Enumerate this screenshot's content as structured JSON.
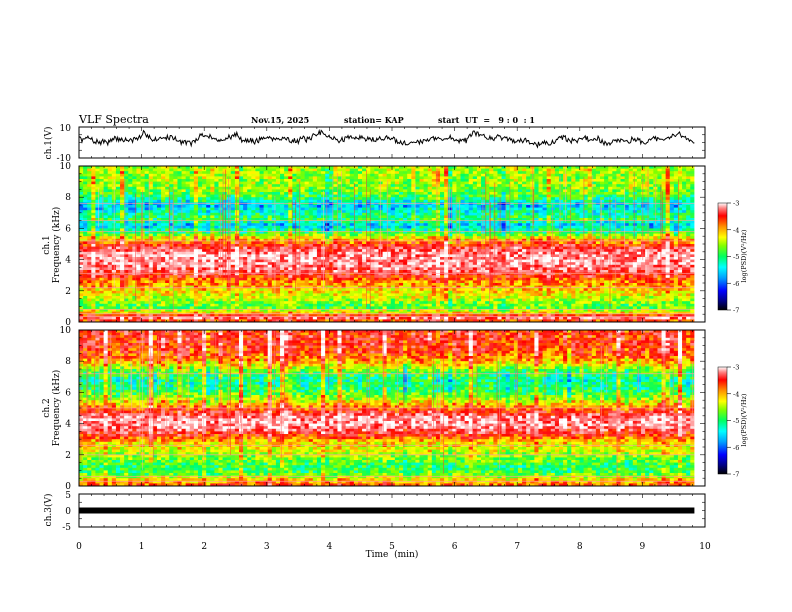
{
  "header": {
    "title": "VLF Spectra",
    "date": "Nov.15, 2025",
    "station": "station= KAP",
    "start_time": "start  UT  =   9 : 0  : 1"
  },
  "colors": {
    "waveform": "#000000",
    "colormap": [
      "#000080",
      "#0000ff",
      "#00a0ff",
      "#00ffff",
      "#00ff60",
      "#80ff00",
      "#ffff00",
      "#ff9000",
      "#ff0000",
      "#ff8080",
      "#ffffff"
    ]
  },
  "chart_data": [
    {
      "type": "line",
      "panel": "ch1-waveform",
      "ylabel": "ch.1(V)",
      "ylim": [
        -10,
        10
      ],
      "yticks": [
        "10",
        "-10"
      ],
      "xlim": [
        0,
        10
      ],
      "duration_min": 9.83,
      "baseline_v": 2.5,
      "amplitude_v": 3
    },
    {
      "type": "heatmap",
      "panel": "ch1-spectrogram",
      "ylabel": "ch.1 Frequency (kHz)",
      "ylim": [
        0,
        10
      ],
      "yticks": [
        "0",
        "2",
        "4",
        "6",
        "8",
        "10"
      ],
      "xlim": [
        0,
        10
      ],
      "duration_min": 9.83,
      "colorbar": {
        "label": "log(PSD)(V²/Hz)",
        "range": [
          -7,
          -3
        ],
        "ticks": [
          "-3",
          "-4",
          "-5",
          "-6",
          "-7"
        ]
      },
      "profile_khz": [
        [
          0,
          -4.2
        ],
        [
          0.3,
          -3.3
        ],
        [
          0.6,
          -4.6
        ],
        [
          1.0,
          -5.2
        ],
        [
          1.5,
          -4.8
        ],
        [
          2.0,
          -4.5
        ],
        [
          2.7,
          -4.1
        ],
        [
          3.2,
          -3.5
        ],
        [
          3.8,
          -3.3
        ],
        [
          4.3,
          -3.3
        ],
        [
          4.8,
          -3.6
        ],
        [
          5.3,
          -4.4
        ],
        [
          5.8,
          -5.4
        ],
        [
          6.2,
          -6.0
        ],
        [
          6.6,
          -5.3
        ],
        [
          7.0,
          -5.6
        ],
        [
          7.5,
          -6.0
        ],
        [
          8.0,
          -5.3
        ],
        [
          8.5,
          -5.0
        ],
        [
          9.0,
          -4.9
        ],
        [
          10.0,
          -4.9
        ]
      ],
      "lines_khz": [
        0.35,
        0.55,
        0.8,
        2.2,
        3.1,
        5.2,
        5.8,
        6.5,
        7.6
      ]
    },
    {
      "type": "heatmap",
      "panel": "ch2-spectrogram",
      "ylabel": "ch.2 Frequency (kHz)",
      "ylim": [
        0,
        10
      ],
      "yticks": [
        "0",
        "2",
        "4",
        "6",
        "8",
        "10"
      ],
      "xlim": [
        0,
        10
      ],
      "duration_min": 9.83,
      "colorbar": {
        "label": "log(PSD)(V²/Hz)",
        "range": [
          -7,
          -3
        ],
        "ticks": [
          "-3",
          "-4",
          "-5",
          "-6",
          "-7"
        ]
      },
      "profile_khz": [
        [
          0,
          -4.0
        ],
        [
          0.3,
          -4.3
        ],
        [
          0.8,
          -5.2
        ],
        [
          1.3,
          -5.4
        ],
        [
          1.8,
          -5.0
        ],
        [
          2.3,
          -4.7
        ],
        [
          2.8,
          -4.5
        ],
        [
          3.3,
          -3.8
        ],
        [
          3.8,
          -3.3
        ],
        [
          4.4,
          -3.3
        ],
        [
          5.0,
          -4.1
        ],
        [
          5.6,
          -4.9
        ],
        [
          6.2,
          -5.4
        ],
        [
          6.8,
          -5.6
        ],
        [
          7.4,
          -5.1
        ],
        [
          8.0,
          -4.3
        ],
        [
          8.6,
          -3.9
        ],
        [
          9.2,
          -3.8
        ],
        [
          10.0,
          -3.8
        ]
      ],
      "lines_khz": [
        0.3,
        0.6,
        2.0,
        2.6,
        5.0,
        7.2
      ]
    },
    {
      "type": "line",
      "panel": "ch3-waveform",
      "ylabel": "ch.3(V)",
      "ylim": [
        -5,
        5
      ],
      "yticks": [
        "5",
        "0",
        "-5"
      ],
      "xlim": [
        0,
        10
      ],
      "duration_min": 9.83,
      "level_v": 0
    }
  ],
  "x_axis": {
    "label": "Time  (min)",
    "ticks": [
      "0",
      "1",
      "2",
      "3",
      "4",
      "5",
      "6",
      "7",
      "8",
      "9",
      "10"
    ]
  }
}
